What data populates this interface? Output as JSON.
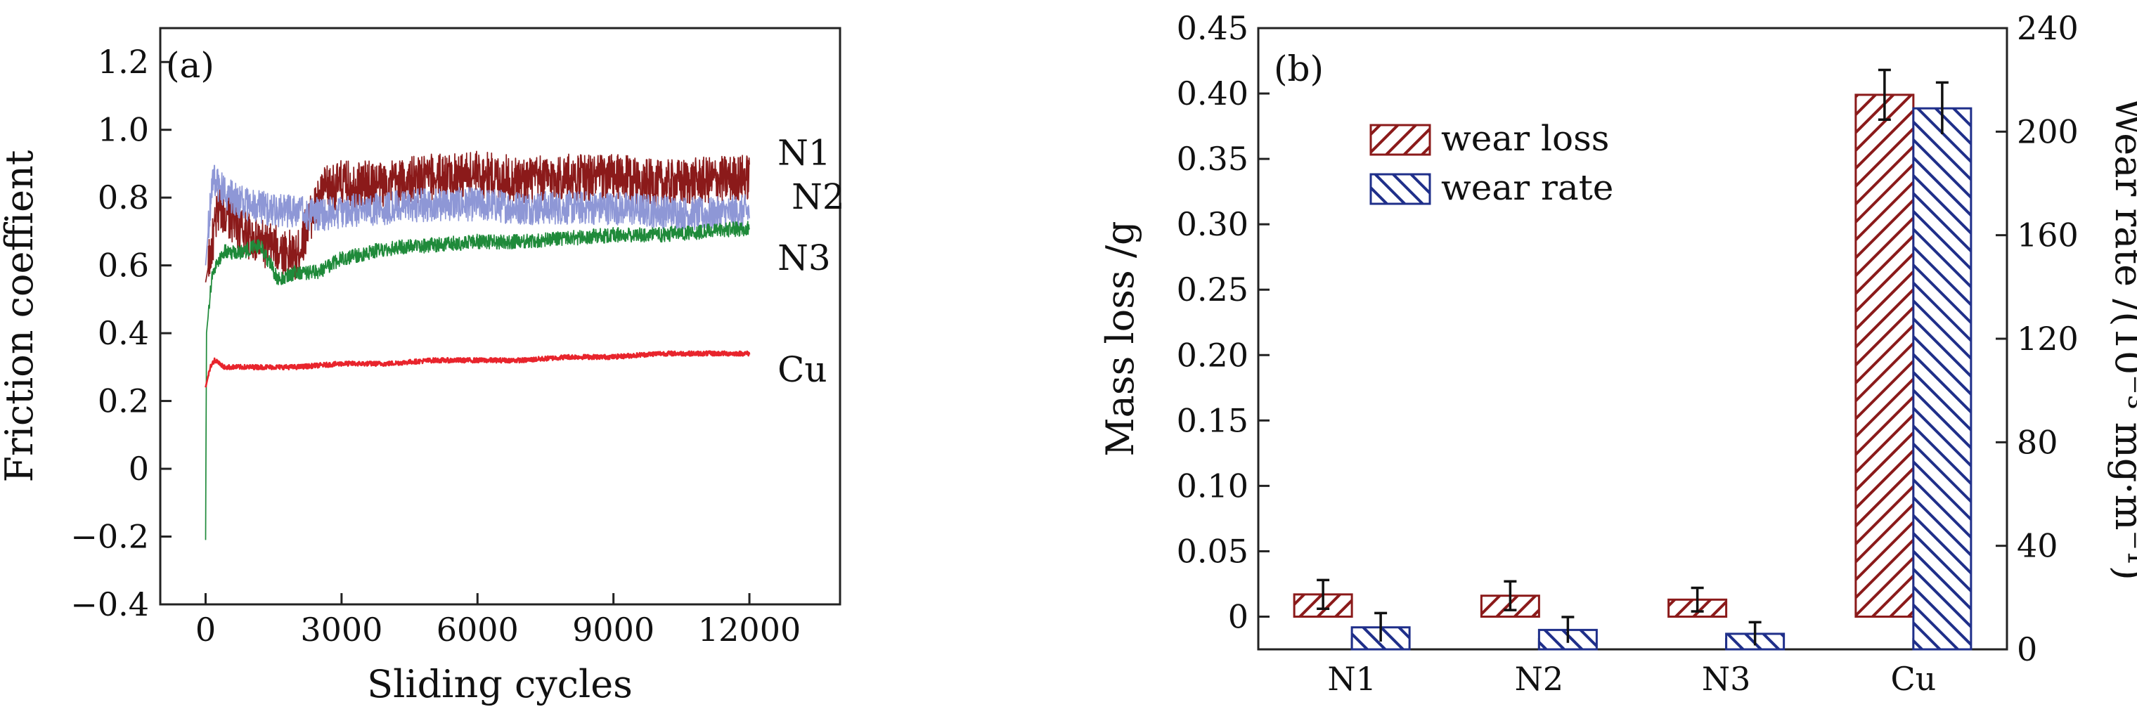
{
  "chart_data": [
    {
      "type": "line",
      "panel_label": "(a)",
      "xlabel": "Sliding cycles",
      "ylabel": "Friction coeffient",
      "xlim": [
        -1000,
        14000
      ],
      "ylim": [
        -0.4,
        1.3
      ],
      "x_ticks": [
        0,
        3000,
        6000,
        9000,
        12000
      ],
      "x_tick_labels": [
        "0",
        "3000",
        "6000",
        "9000",
        "12000"
      ],
      "y_ticks": [
        -0.4,
        -0.2,
        0,
        0.2,
        0.4,
        0.6,
        0.8,
        1.0,
        1.2
      ],
      "y_tick_labels": [
        "−0.4",
        "−0.2",
        "0",
        "0.2",
        "0.4",
        "0.6",
        "0.8",
        "1.0",
        "1.2"
      ],
      "grid": false,
      "series": [
        {
          "name": "N1",
          "color": "#8b1a1a",
          "x": [
            0,
            300,
            800,
            1300,
            1800,
            2000,
            2300,
            2600,
            3000,
            4000,
            5000,
            6000,
            7000,
            8000,
            9000,
            10000,
            11000,
            12000
          ],
          "y": [
            0.55,
            0.78,
            0.7,
            0.66,
            0.64,
            0.62,
            0.74,
            0.82,
            0.84,
            0.84,
            0.86,
            0.87,
            0.85,
            0.86,
            0.86,
            0.84,
            0.85,
            0.86
          ],
          "noise": 0.07
        },
        {
          "name": "N2",
          "color": "#8e97d6",
          "x": [
            0,
            150,
            300,
            700,
            1200,
            1800,
            2500,
            3000,
            4000,
            5000,
            6000,
            7000,
            8000,
            9000,
            10000,
            11000,
            12000
          ],
          "y": [
            0.6,
            0.86,
            0.83,
            0.79,
            0.77,
            0.76,
            0.75,
            0.76,
            0.77,
            0.78,
            0.78,
            0.77,
            0.77,
            0.77,
            0.76,
            0.75,
            0.76
          ],
          "noise": 0.05
        },
        {
          "name": "N3",
          "color": "#1f8a3a",
          "x": [
            0,
            20,
            150,
            400,
            800,
            1200,
            1600,
            2000,
            2500,
            3000,
            4000,
            5000,
            6000,
            7000,
            8000,
            9000,
            10000,
            11000,
            12000
          ],
          "y": [
            -0.21,
            0.4,
            0.58,
            0.64,
            0.64,
            0.66,
            0.56,
            0.58,
            0.58,
            0.62,
            0.65,
            0.66,
            0.67,
            0.67,
            0.68,
            0.69,
            0.69,
            0.7,
            0.71
          ],
          "noise": 0.022
        },
        {
          "name": "Cu",
          "color": "#e8242c",
          "x": [
            0,
            100,
            200,
            400,
            1000,
            2000,
            3000,
            4000,
            5000,
            6000,
            7000,
            8000,
            9000,
            10000,
            11000,
            12000
          ],
          "y": [
            0.24,
            0.3,
            0.32,
            0.3,
            0.3,
            0.3,
            0.31,
            0.31,
            0.32,
            0.32,
            0.32,
            0.33,
            0.33,
            0.34,
            0.34,
            0.34
          ],
          "noise": 0.007
        }
      ],
      "annotations": [
        {
          "text": "N1",
          "series": "N1"
        },
        {
          "text": "N2",
          "series": "N2"
        },
        {
          "text": "N3",
          "series": "N3"
        },
        {
          "text": "Cu",
          "series": "Cu"
        }
      ]
    },
    {
      "type": "bar",
      "panel_label": "(b)",
      "categories": [
        "N1",
        "N2",
        "N3",
        "Cu"
      ],
      "ylabel": "Mass loss /g",
      "y2label": "Wear rate /(10⁻³ mg·m⁻¹)",
      "ylim": [
        -0.025,
        0.45
      ],
      "y2lim": [
        0,
        240
      ],
      "y_ticks": [
        0,
        0.05,
        0.1,
        0.15,
        0.2,
        0.25,
        0.3,
        0.35,
        0.4,
        0.45
      ],
      "y_tick_labels": [
        "0",
        "0.05",
        "0.10",
        "0.15",
        "0.20",
        "0.25",
        "0.30",
        "0.35",
        "0.40",
        "0.45"
      ],
      "y2_ticks": [
        0,
        40,
        80,
        120,
        160,
        200,
        240
      ],
      "y2_tick_labels": [
        "0",
        "40",
        "80",
        "120",
        "160",
        "200",
        "240"
      ],
      "legend_position": "top-left",
      "series": [
        {
          "name": "wear loss",
          "axis": "left",
          "color": "#8b1a1a",
          "values": [
            0.017,
            0.016,
            0.013,
            0.399
          ],
          "errors": [
            0.011,
            0.011,
            0.009,
            0.019
          ]
        },
        {
          "name": "wear rate",
          "axis": "right",
          "color": "#1f2f8a",
          "values": [
            8.5,
            7.5,
            6.0,
            209
          ],
          "errors": [
            5.5,
            5.0,
            4.5,
            10
          ]
        }
      ]
    }
  ]
}
